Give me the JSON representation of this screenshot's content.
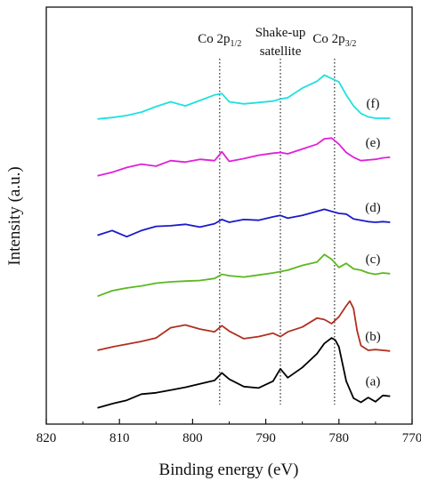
{
  "chart_data": {
    "type": "line",
    "title": "",
    "xlabel": "Binding energy (eV)",
    "ylabel": "Intensity (a.u.)",
    "xlim": [
      820,
      770
    ],
    "x_reversed": true,
    "x_ticks": [
      820,
      810,
      800,
      790,
      780,
      770
    ],
    "x_tick_labels": [
      "820",
      "810",
      "800",
      "790",
      "780",
      "770"
    ],
    "y_ticks_shown": false,
    "grid": false,
    "legend": "none",
    "markers": [
      {
        "x": 796.3,
        "label_main": "Co 2p",
        "label_sub": "1/2"
      },
      {
        "x": 788.0,
        "label_line1": "Shake-up",
        "label_line2": "satellite"
      },
      {
        "x": 780.6,
        "label_main": "Co 2p",
        "label_sub": "3/2"
      }
    ],
    "series": [
      {
        "label": "(a)",
        "color": "#000000",
        "offset": 0,
        "x": [
          813,
          811,
          809,
          807,
          805,
          803,
          801,
          799,
          797,
          796,
          795,
          793,
          791,
          789,
          788,
          787,
          785,
          783,
          782,
          781,
          780.5,
          780,
          779,
          778,
          777,
          776,
          775,
          774,
          773
        ],
        "y": [
          0.3,
          0.9,
          1.4,
          2.3,
          2.5,
          2.9,
          3.3,
          3.8,
          4.3,
          5.4,
          4.5,
          3.4,
          3.2,
          4.2,
          6.0,
          4.7,
          6.2,
          8.2,
          9.7,
          10.5,
          10.2,
          9.2,
          4.2,
          1.7,
          1.1,
          1.8,
          1.2,
          2.1,
          2.0
        ]
      },
      {
        "label": "(b)",
        "color": "#b03020",
        "offset": 8.2,
        "x": [
          813,
          811,
          809,
          807,
          805,
          803,
          801,
          799,
          797,
          796,
          795,
          793,
          791,
          789,
          788,
          787,
          785,
          783,
          782,
          781,
          780,
          779,
          778.5,
          778,
          777.5,
          777,
          776,
          775,
          774,
          773
        ],
        "y": [
          0.5,
          1.0,
          1.4,
          1.8,
          2.3,
          3.8,
          4.2,
          3.6,
          3.2,
          4.1,
          3.3,
          2.2,
          2.5,
          3.0,
          2.5,
          3.2,
          3.9,
          5.2,
          5.0,
          4.4,
          5.4,
          7.0,
          7.7,
          6.6,
          3.3,
          1.2,
          0.5,
          0.6,
          0.5,
          0.4
        ]
      },
      {
        "label": "(c)",
        "color": "#5ab820",
        "offset": 16.6,
        "x": [
          813,
          811,
          809,
          807,
          805,
          803,
          801,
          799,
          797,
          796,
          795,
          793,
          791,
          789,
          788,
          787,
          785,
          783,
          782,
          781,
          780,
          779,
          778,
          777,
          776,
          775,
          774,
          773
        ],
        "y": [
          0.0,
          0.8,
          1.2,
          1.5,
          1.9,
          2.1,
          2.2,
          2.3,
          2.6,
          3.2,
          3.0,
          2.8,
          3.1,
          3.4,
          3.6,
          3.8,
          4.5,
          5.0,
          6.1,
          5.4,
          4.2,
          4.8,
          4.0,
          3.8,
          3.4,
          3.2,
          3.4,
          3.3
        ]
      },
      {
        "label": "(d)",
        "color": "#1a1ac8",
        "offset": 25.4,
        "x": [
          813,
          811,
          809,
          807,
          805,
          803,
          801,
          799,
          797,
          796,
          795,
          793,
          791,
          789,
          788,
          787,
          785,
          783,
          782,
          781,
          780,
          779,
          778,
          777,
          776,
          775,
          774,
          773
        ],
        "y": [
          0.1,
          0.8,
          -0.1,
          0.8,
          1.4,
          1.5,
          1.7,
          1.3,
          1.8,
          2.4,
          2.0,
          2.4,
          2.3,
          2.8,
          3.0,
          2.6,
          3.0,
          3.6,
          3.9,
          3.6,
          3.3,
          3.2,
          2.5,
          2.3,
          2.1,
          2.0,
          2.1,
          2.0
        ]
      },
      {
        "label": "(e)",
        "color": "#e020d8",
        "offset": 33.8,
        "x": [
          813,
          811,
          809,
          807,
          805,
          803,
          801,
          799,
          797,
          796,
          795,
          793,
          791,
          789,
          788,
          787,
          785,
          783,
          782,
          781,
          780,
          779,
          778,
          777,
          776,
          775,
          774,
          773
        ],
        "y": [
          0.4,
          0.9,
          1.6,
          2.1,
          1.8,
          2.6,
          2.4,
          2.8,
          2.6,
          3.9,
          2.5,
          2.9,
          3.4,
          3.7,
          3.8,
          3.6,
          4.3,
          5.0,
          5.8,
          5.9,
          5.0,
          3.8,
          3.1,
          2.6,
          2.7,
          2.8,
          3.0,
          3.1
        ]
      },
      {
        "label": "(f)",
        "color": "#20e0e0",
        "offset": 42.4,
        "x": [
          813,
          811,
          809,
          807,
          805,
          803,
          801,
          799,
          797,
          796,
          795,
          793,
          791,
          789,
          788,
          787,
          785,
          783,
          782,
          781,
          780,
          779,
          778,
          777,
          776,
          775,
          774,
          773
        ],
        "y": [
          0.1,
          0.3,
          0.6,
          1.1,
          1.9,
          2.6,
          2.0,
          2.8,
          3.6,
          3.8,
          2.6,
          2.3,
          2.5,
          2.7,
          3.0,
          3.2,
          4.6,
          5.6,
          6.5,
          6.0,
          5.5,
          3.6,
          2.0,
          0.9,
          0.4,
          0.2,
          0.2,
          0.2
        ]
      }
    ]
  }
}
